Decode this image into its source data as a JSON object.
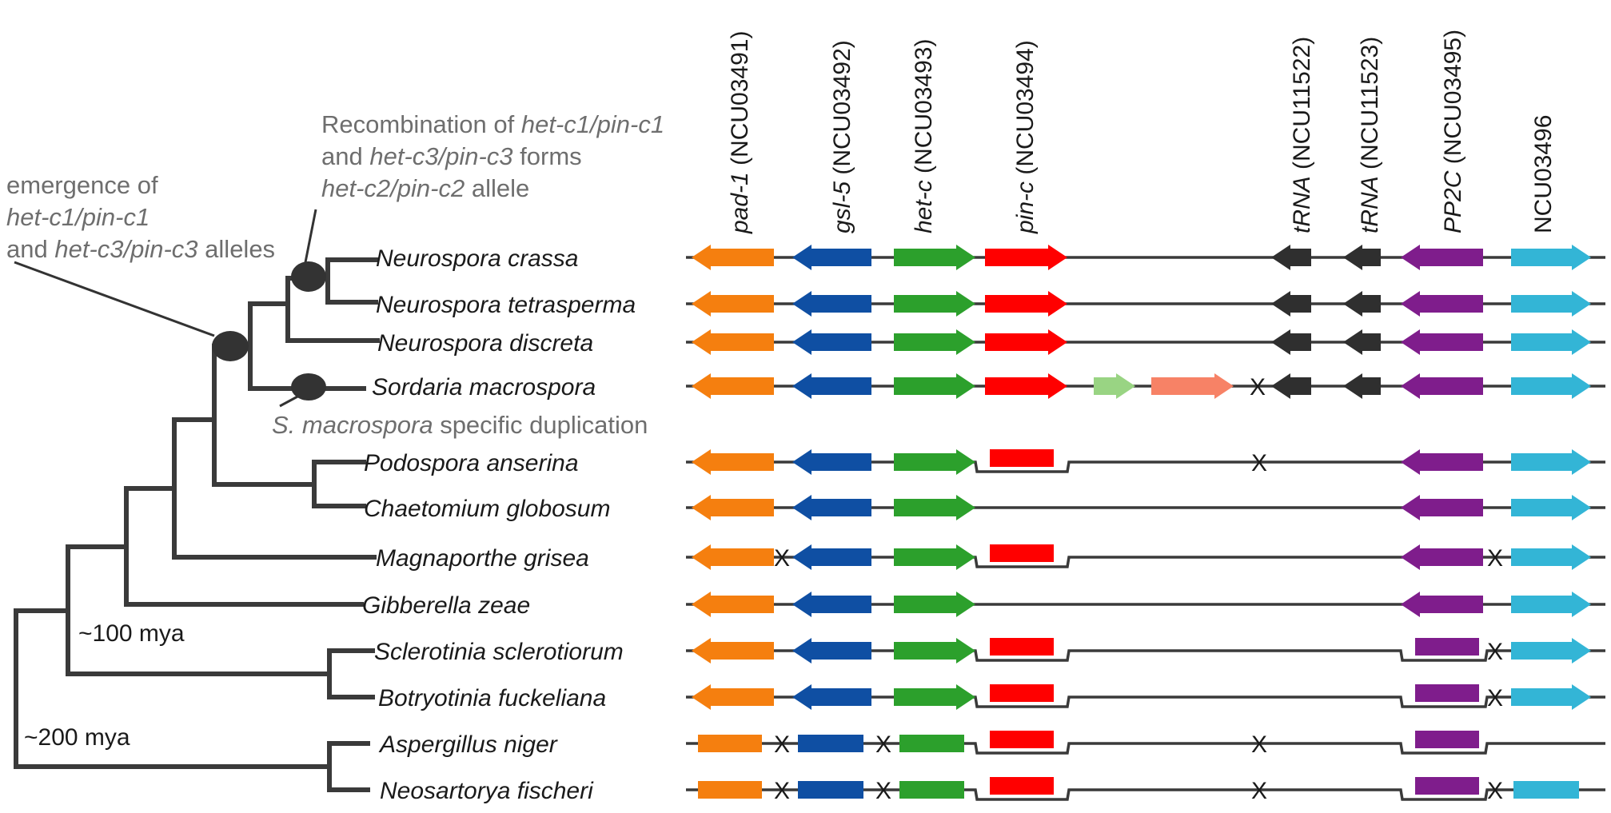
{
  "colors": {
    "pad-1": "#f57f0f",
    "gsl-5": "#0f4fa3",
    "het-c": "#2ca02c",
    "pin-c": "#ff0000",
    "tRNA": "#2f2f2f",
    "PP2C": "#7f1d8c",
    "NCU03496": "#33b5d6",
    "dup-het-c": "#99d483",
    "dup-pin-c": "#f78266",
    "line": "#3a3a3a"
  },
  "genes": [
    {
      "id": "g0",
      "italic": "pad-1",
      "rest": " (NCU03491)"
    },
    {
      "id": "g1",
      "italic": "gsl-5",
      "rest": " (NCU03492)"
    },
    {
      "id": "g2",
      "italic": "het-c",
      "rest": " (NCU03493)"
    },
    {
      "id": "g3",
      "italic": "pin-c",
      "rest": " (NCU03494)"
    },
    {
      "id": "g4",
      "italic": "tRNA",
      "rest": " (NCU11522)"
    },
    {
      "id": "g5",
      "italic": "tRNA",
      "rest": " (NCU11523)"
    },
    {
      "id": "g6",
      "italic": "PP2C",
      "rest": " (NCU03495)"
    },
    {
      "id": "g7",
      "italic": "",
      "rest": "NCU03496"
    }
  ],
  "species": [
    "Neurospora crassa",
    "Neurospora tetrasperma",
    "Neurospora discreta",
    "Sordaria macrospora",
    "Podospora anserina",
    "Chaetomium globosum",
    "Magnaporthe grisea",
    "Gibberella zeae",
    "Sclerotinia sclerotiorum",
    "Botryotinia fuckeliana",
    "Aspergillus niger",
    "Neosartorya fischeri"
  ],
  "annotations": {
    "emergence": [
      [
        {
          "t": "emergence of",
          "i": false
        }
      ],
      [
        {
          "t": "het-c1/pin-c1",
          "i": true
        }
      ],
      [
        {
          "t": "and ",
          "i": false
        },
        {
          "t": "het-c3/pin-c3",
          "i": true
        },
        {
          "t": " alleles",
          "i": false
        }
      ]
    ],
    "recombination": [
      [
        {
          "t": "Recombination of ",
          "i": false
        },
        {
          "t": "het-c1/pin-c1",
          "i": true
        }
      ],
      [
        {
          "t": "and ",
          "i": false
        },
        {
          "t": "het-c3/pin-c3",
          "i": true
        },
        {
          "t": " forms",
          "i": false
        }
      ],
      [
        {
          "t": "het-c2/pin-c2",
          "i": true
        },
        {
          "t": " allele",
          "i": false
        }
      ]
    ],
    "duplication": [
      [
        {
          "t": "S. macrospora",
          "i": true
        },
        {
          "t": " specific duplication",
          "i": false
        }
      ]
    ]
  },
  "time_labels": [
    "~100 mya",
    "~200 mya"
  ],
  "break_mark": "X",
  "rows": [
    {
      "species": "Neurospora crassa",
      "genes": [
        {
          "g": "pad-1",
          "d": "L"
        },
        {
          "g": "gsl-5",
          "d": "L"
        },
        {
          "g": "het-c",
          "d": "R"
        },
        {
          "g": "pin-c",
          "d": "R"
        },
        {
          "g": "tRNA1",
          "d": "L"
        },
        {
          "g": "tRNA2",
          "d": "L"
        },
        {
          "g": "PP2C",
          "d": "L"
        },
        {
          "g": "NCU03496",
          "d": "R"
        }
      ],
      "breaks": [],
      "loss": false
    },
    {
      "species": "Neurospora tetrasperma",
      "genes": [
        {
          "g": "pad-1",
          "d": "L"
        },
        {
          "g": "gsl-5",
          "d": "L"
        },
        {
          "g": "het-c",
          "d": "R"
        },
        {
          "g": "pin-c",
          "d": "R"
        },
        {
          "g": "tRNA1",
          "d": "L"
        },
        {
          "g": "tRNA2",
          "d": "L"
        },
        {
          "g": "PP2C",
          "d": "L"
        },
        {
          "g": "NCU03496",
          "d": "R"
        }
      ],
      "breaks": [],
      "loss": false
    },
    {
      "species": "Neurospora discreta",
      "genes": [
        {
          "g": "pad-1",
          "d": "L"
        },
        {
          "g": "gsl-5",
          "d": "L"
        },
        {
          "g": "het-c",
          "d": "R"
        },
        {
          "g": "pin-c",
          "d": "R"
        },
        {
          "g": "tRNA1",
          "d": "L"
        },
        {
          "g": "tRNA2",
          "d": "L"
        },
        {
          "g": "PP2C",
          "d": "L"
        },
        {
          "g": "NCU03496",
          "d": "R"
        }
      ],
      "breaks": [],
      "loss": false
    },
    {
      "species": "Sordaria macrospora",
      "genes": [
        {
          "g": "pad-1",
          "d": "L"
        },
        {
          "g": "gsl-5",
          "d": "L"
        },
        {
          "g": "het-c",
          "d": "R"
        },
        {
          "g": "pin-c",
          "d": "R"
        },
        {
          "g": "dup-het-c",
          "d": "R"
        },
        {
          "g": "dup-pin-c",
          "d": "R"
        },
        {
          "g": "tRNA1",
          "d": "L"
        },
        {
          "g": "tRNA2",
          "d": "L"
        },
        {
          "g": "PP2C",
          "d": "L"
        },
        {
          "g": "NCU03496",
          "d": "R"
        }
      ],
      "breaks": [
        "dupEnd"
      ],
      "loss": false
    },
    {
      "species": "Podospora anserina",
      "genes": [
        {
          "g": "pad-1",
          "d": "L"
        },
        {
          "g": "gsl-5",
          "d": "L"
        },
        {
          "g": "het-c",
          "d": "R"
        },
        {
          "g": "pin-c",
          "d": "N"
        },
        {
          "g": "PP2C",
          "d": "L"
        },
        {
          "g": "NCU03496",
          "d": "R"
        }
      ],
      "breaks": [
        "tRNA"
      ],
      "loss": "pin"
    },
    {
      "species": "Chaetomium globosum",
      "genes": [
        {
          "g": "pad-1",
          "d": "L"
        },
        {
          "g": "gsl-5",
          "d": "L"
        },
        {
          "g": "het-c",
          "d": "R"
        },
        {
          "g": "PP2C",
          "d": "L"
        },
        {
          "g": "NCU03496",
          "d": "R"
        }
      ],
      "breaks": [],
      "loss": false
    },
    {
      "species": "Magnaporthe grisea",
      "genes": [
        {
          "g": "pad-1",
          "d": "L"
        },
        {
          "g": "gsl-5",
          "d": "L"
        },
        {
          "g": "het-c",
          "d": "R"
        },
        {
          "g": "pin-c",
          "d": "N"
        },
        {
          "g": "PP2C",
          "d": "L"
        },
        {
          "g": "NCU03496",
          "d": "R"
        }
      ],
      "breaks": [
        "padGsl",
        "pp2cNcu"
      ],
      "loss": "pin"
    },
    {
      "species": "Gibberella zeae",
      "genes": [
        {
          "g": "pad-1",
          "d": "L"
        },
        {
          "g": "gsl-5",
          "d": "L"
        },
        {
          "g": "het-c",
          "d": "R"
        },
        {
          "g": "PP2C",
          "d": "L"
        },
        {
          "g": "NCU03496",
          "d": "R"
        }
      ],
      "breaks": [],
      "loss": false
    },
    {
      "species": "Sclerotinia sclerotiorum",
      "genes": [
        {
          "g": "pad-1",
          "d": "L"
        },
        {
          "g": "gsl-5",
          "d": "L"
        },
        {
          "g": "het-c",
          "d": "R"
        },
        {
          "g": "pin-c",
          "d": "N"
        },
        {
          "g": "PP2C",
          "d": "N"
        },
        {
          "g": "NCU03496",
          "d": "R"
        }
      ],
      "breaks": [
        "pp2cNcu"
      ],
      "loss": "pinpp2c"
    },
    {
      "species": "Botryotinia fuckeliana",
      "genes": [
        {
          "g": "pad-1",
          "d": "L"
        },
        {
          "g": "gsl-5",
          "d": "L"
        },
        {
          "g": "het-c",
          "d": "R"
        },
        {
          "g": "pin-c",
          "d": "N"
        },
        {
          "g": "PP2C",
          "d": "N"
        },
        {
          "g": "NCU03496",
          "d": "R"
        }
      ],
      "breaks": [
        "pp2cNcu"
      ],
      "loss": "pinpp2c"
    },
    {
      "species": "Aspergillus niger",
      "genes": [
        {
          "g": "pad-1",
          "d": "N"
        },
        {
          "g": "gsl-5",
          "d": "N"
        },
        {
          "g": "het-c",
          "d": "N"
        },
        {
          "g": "pin-c",
          "d": "N"
        },
        {
          "g": "PP2C",
          "d": "N"
        }
      ],
      "breaks": [
        "padGsl",
        "gslHet",
        "tRNA"
      ],
      "loss": "pinpp2c"
    },
    {
      "species": "Neosartorya fischeri",
      "genes": [
        {
          "g": "pad-1",
          "d": "N"
        },
        {
          "g": "gsl-5",
          "d": "N"
        },
        {
          "g": "het-c",
          "d": "N"
        },
        {
          "g": "pin-c",
          "d": "N"
        },
        {
          "g": "PP2C",
          "d": "N"
        },
        {
          "g": "NCU03496",
          "d": "N"
        }
      ],
      "breaks": [
        "padGsl",
        "gslHet",
        "tRNA",
        "pp2cNcu"
      ],
      "loss": "pinpp2c"
    }
  ]
}
